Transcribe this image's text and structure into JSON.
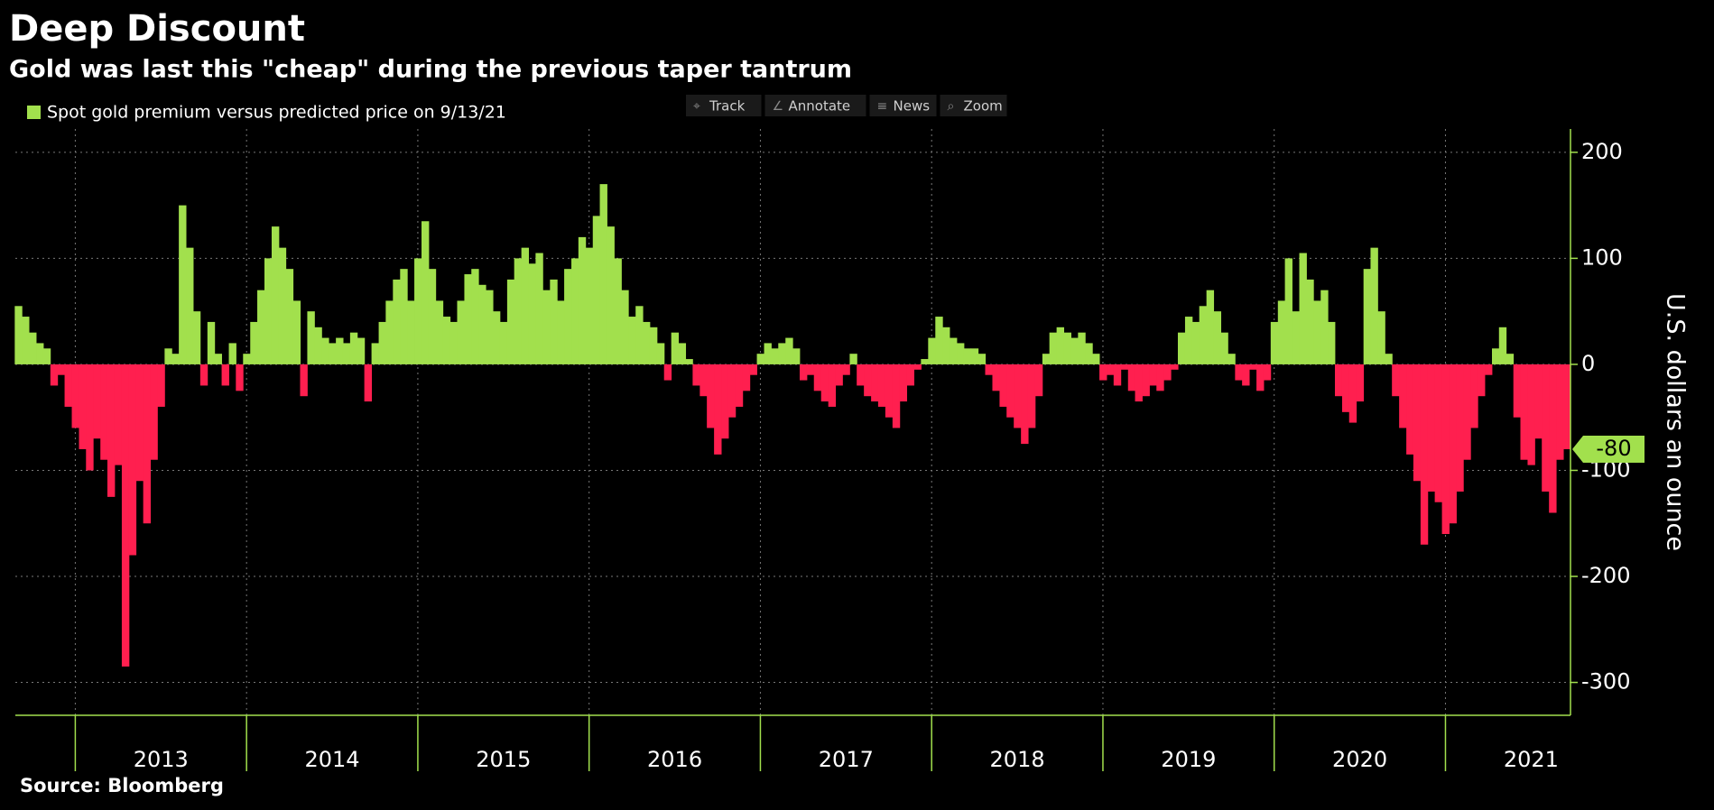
{
  "chart_data": {
    "type": "bar",
    "title": "Deep Discount",
    "subtitle": "Gold was last this \"cheap\" during the previous taper tantrum",
    "y_label": "U.S. dollars an ounce",
    "source": "Source: Bloomberg",
    "toolbar": [
      "Track",
      "Annotate",
      "News",
      "Zoom"
    ],
    "series": [
      {
        "name": "Spot gold premium versus predicted price on 9/13/21",
        "color": "#a2e04d",
        "negative_color": "#ff1f4f",
        "x": [
          2012.667,
          2012.708,
          2012.75,
          2012.792,
          2012.833,
          2012.875,
          2012.917,
          2012.958,
          2013.0,
          2013.042,
          2013.083,
          2013.125,
          2013.167,
          2013.208,
          2013.25,
          2013.292,
          2013.333,
          2013.375,
          2013.417,
          2013.458,
          2013.5,
          2013.542,
          2013.583,
          2013.625,
          2013.667,
          2013.708,
          2013.75,
          2013.792,
          2013.833,
          2013.875,
          2013.917,
          2013.958,
          2014.0,
          2014.042,
          2014.083,
          2014.125,
          2014.167,
          2014.208,
          2014.25,
          2014.292,
          2014.333,
          2014.375,
          2014.417,
          2014.458,
          2014.5,
          2014.542,
          2014.583,
          2014.625,
          2014.667,
          2014.708,
          2014.75,
          2014.792,
          2014.833,
          2014.875,
          2014.917,
          2014.958,
          2015.0,
          2015.042,
          2015.083,
          2015.125,
          2015.167,
          2015.208,
          2015.25,
          2015.292,
          2015.333,
          2015.375,
          2015.417,
          2015.458,
          2015.5,
          2015.542,
          2015.583,
          2015.625,
          2015.667,
          2015.708,
          2015.75,
          2015.792,
          2015.833,
          2015.875,
          2015.917,
          2015.958,
          2016.0,
          2016.042,
          2016.083,
          2016.125,
          2016.167,
          2016.208,
          2016.25,
          2016.292,
          2016.333,
          2016.375,
          2016.417,
          2016.458,
          2016.5,
          2016.542,
          2016.583,
          2016.625,
          2016.667,
          2016.708,
          2016.75,
          2016.792,
          2016.833,
          2016.875,
          2016.917,
          2016.958,
          2017.0,
          2017.042,
          2017.083,
          2017.125,
          2017.167,
          2017.208,
          2017.25,
          2017.292,
          2017.333,
          2017.375,
          2017.417,
          2017.458,
          2017.5,
          2017.542,
          2017.583,
          2017.625,
          2017.667,
          2017.708,
          2017.75,
          2017.792,
          2017.833,
          2017.875,
          2017.917,
          2017.958,
          2018.0,
          2018.042,
          2018.083,
          2018.125,
          2018.167,
          2018.208,
          2018.25,
          2018.292,
          2018.333,
          2018.375,
          2018.417,
          2018.458,
          2018.5,
          2018.542,
          2018.583,
          2018.625,
          2018.667,
          2018.708,
          2018.75,
          2018.792,
          2018.833,
          2018.875,
          2018.917,
          2018.958,
          2019.0,
          2019.042,
          2019.083,
          2019.125,
          2019.167,
          2019.208,
          2019.25,
          2019.292,
          2019.333,
          2019.375,
          2019.417,
          2019.458,
          2019.5,
          2019.542,
          2019.583,
          2019.625,
          2019.667,
          2019.708,
          2019.75,
          2019.792,
          2019.833,
          2019.875,
          2019.917,
          2019.958,
          2020.0,
          2020.042,
          2020.083,
          2020.125,
          2020.167,
          2020.208,
          2020.25,
          2020.292,
          2020.333,
          2020.375,
          2020.417,
          2020.458,
          2020.5,
          2020.542,
          2020.583,
          2020.625,
          2020.667,
          2020.708,
          2020.75,
          2020.792,
          2020.833,
          2020.875,
          2020.917,
          2020.958,
          2021.0,
          2021.042,
          2021.083,
          2021.125,
          2021.167,
          2021.208,
          2021.25,
          2021.292,
          2021.333,
          2021.375,
          2021.417,
          2021.458,
          2021.5,
          2021.542,
          2021.583,
          2021.625,
          2021.667,
          2021.708
        ],
        "values": [
          55,
          45,
          30,
          20,
          15,
          -20,
          -10,
          -40,
          -60,
          -80,
          -100,
          -70,
          -90,
          -125,
          -95,
          -285,
          -180,
          -110,
          -150,
          -90,
          -40,
          15,
          10,
          150,
          110,
          50,
          -20,
          40,
          10,
          -20,
          20,
          -25,
          10,
          40,
          70,
          100,
          130,
          110,
          90,
          60,
          -30,
          50,
          35,
          25,
          20,
          25,
          20,
          30,
          25,
          -35,
          20,
          40,
          60,
          80,
          90,
          60,
          100,
          135,
          90,
          60,
          45,
          40,
          60,
          85,
          90,
          75,
          70,
          50,
          40,
          80,
          100,
          110,
          95,
          105,
          70,
          80,
          60,
          90,
          100,
          120,
          110,
          140,
          170,
          130,
          100,
          70,
          45,
          55,
          40,
          35,
          20,
          -15,
          30,
          20,
          5,
          -20,
          -30,
          -60,
          -85,
          -70,
          -50,
          -40,
          -25,
          -10,
          10,
          20,
          15,
          20,
          25,
          15,
          -15,
          -10,
          -25,
          -35,
          -40,
          -20,
          -10,
          10,
          -20,
          -30,
          -35,
          -40,
          -50,
          -60,
          -35,
          -20,
          -5,
          5,
          25,
          45,
          35,
          25,
          20,
          15,
          15,
          10,
          -10,
          -25,
          -40,
          -50,
          -60,
          -75,
          -60,
          -30,
          10,
          30,
          35,
          30,
          25,
          30,
          20,
          10,
          -15,
          -10,
          -20,
          -5,
          -25,
          -35,
          -30,
          -20,
          -25,
          -15,
          -5,
          30,
          45,
          40,
          55,
          70,
          50,
          30,
          10,
          -15,
          -20,
          -5,
          -25,
          -15,
          40,
          60,
          100,
          50,
          105,
          80,
          60,
          70,
          40,
          -30,
          -45,
          -55,
          -35,
          90,
          110,
          50,
          10,
          -30,
          -60,
          -85,
          -110,
          -170,
          -120,
          -130,
          -160,
          -150,
          -120,
          -90,
          -60,
          -30,
          -10,
          15,
          35,
          10,
          -50,
          -90,
          -95,
          -70,
          -120,
          -140,
          -90,
          -80
        ]
      }
    ],
    "xlim": [
      2012.65,
      2021.73
    ],
    "xticks": [
      {
        "value": 2013.5,
        "label": "2013"
      },
      {
        "value": 2014.5,
        "label": "2014"
      },
      {
        "value": 2015.5,
        "label": "2015"
      },
      {
        "value": 2016.5,
        "label": "2016"
      },
      {
        "value": 2017.5,
        "label": "2017"
      },
      {
        "value": 2018.5,
        "label": "2018"
      },
      {
        "value": 2019.5,
        "label": "2019"
      },
      {
        "value": 2020.5,
        "label": "2020"
      },
      {
        "value": 2021.5,
        "label": "2021"
      }
    ],
    "ylim": [
      -331,
      222
    ],
    "yticks": [
      -300,
      -200,
      -100,
      0,
      100,
      200
    ],
    "grid": true
  }
}
